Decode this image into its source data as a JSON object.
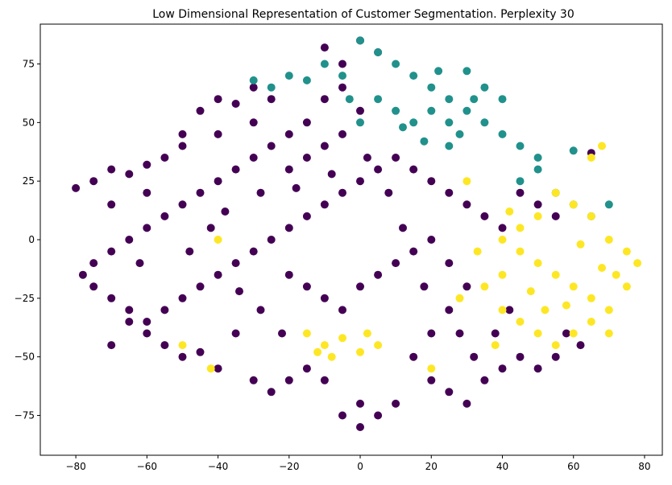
{
  "chart_data": {
    "type": "scatter",
    "title": "Low Dimensional Representation of Customer Segmentation. Perplexity 30",
    "xlabel": "",
    "ylabel": "",
    "xlim": [
      -90,
      85
    ],
    "ylim": [
      -92,
      92
    ],
    "x_ticks": [
      -80,
      -60,
      -40,
      -20,
      0,
      20,
      40,
      60,
      80
    ],
    "y_ticks": [
      -75,
      -50,
      -25,
      0,
      25,
      50,
      75
    ],
    "grid": false,
    "series": [
      {
        "color": "#440154",
        "points": [
          [
            -75,
            25
          ],
          [
            -70,
            30
          ],
          [
            -65,
            28
          ],
          [
            -60,
            32
          ],
          [
            -55,
            35
          ],
          [
            -50,
            45
          ],
          [
            -45,
            55
          ],
          [
            -40,
            60
          ],
          [
            -35,
            58
          ],
          [
            -30,
            50
          ],
          [
            -25,
            40
          ],
          [
            -20,
            30
          ],
          [
            -15,
            35
          ],
          [
            -10,
            40
          ],
          [
            -5,
            45
          ],
          [
            0,
            55
          ],
          [
            -5,
            65
          ],
          [
            -10,
            60
          ],
          [
            -15,
            50
          ],
          [
            -20,
            45
          ],
          [
            -30,
            35
          ],
          [
            -35,
            30
          ],
          [
            -40,
            25
          ],
          [
            -45,
            20
          ],
          [
            -50,
            15
          ],
          [
            -55,
            10
          ],
          [
            -60,
            5
          ],
          [
            -65,
            0
          ],
          [
            -70,
            -5
          ],
          [
            -75,
            -10
          ],
          [
            -78,
            -15
          ],
          [
            -75,
            -20
          ],
          [
            -70,
            -25
          ],
          [
            -65,
            -30
          ],
          [
            -60,
            -35
          ],
          [
            -55,
            -30
          ],
          [
            -50,
            -25
          ],
          [
            -45,
            -20
          ],
          [
            -40,
            -15
          ],
          [
            -35,
            -10
          ],
          [
            -30,
            -5
          ],
          [
            -25,
            0
          ],
          [
            -20,
            5
          ],
          [
            -15,
            10
          ],
          [
            -10,
            15
          ],
          [
            -5,
            20
          ],
          [
            0,
            25
          ],
          [
            5,
            30
          ],
          [
            10,
            35
          ],
          [
            15,
            30
          ],
          [
            20,
            25
          ],
          [
            25,
            20
          ],
          [
            30,
            15
          ],
          [
            35,
            10
          ],
          [
            40,
            5
          ],
          [
            45,
            20
          ],
          [
            50,
            15
          ],
          [
            55,
            10
          ],
          [
            -20,
            -15
          ],
          [
            -15,
            -20
          ],
          [
            -10,
            -25
          ],
          [
            -5,
            -30
          ],
          [
            0,
            -20
          ],
          [
            5,
            -15
          ],
          [
            10,
            -10
          ],
          [
            15,
            -5
          ],
          [
            20,
            0
          ],
          [
            25,
            -10
          ],
          [
            30,
            -20
          ],
          [
            25,
            -30
          ],
          [
            20,
            -40
          ],
          [
            15,
            -50
          ],
          [
            20,
            -60
          ],
          [
            25,
            -65
          ],
          [
            30,
            -70
          ],
          [
            35,
            -60
          ],
          [
            40,
            -55
          ],
          [
            45,
            -50
          ],
          [
            50,
            -55
          ],
          [
            55,
            -50
          ],
          [
            -30,
            -60
          ],
          [
            -25,
            -65
          ],
          [
            -20,
            -60
          ],
          [
            -15,
            -55
          ],
          [
            -10,
            -60
          ],
          [
            -5,
            -75
          ],
          [
            0,
            -80
          ],
          [
            5,
            -75
          ],
          [
            10,
            -70
          ],
          [
            0,
            -70
          ],
          [
            -55,
            -45
          ],
          [
            -50,
            -50
          ],
          [
            -45,
            -48
          ],
          [
            -40,
            -55
          ],
          [
            -35,
            -40
          ],
          [
            -60,
            -40
          ],
          [
            -65,
            -35
          ],
          [
            -70,
            -45
          ],
          [
            5,
            80
          ],
          [
            -5,
            75
          ],
          [
            -10,
            82
          ],
          [
            0,
            85
          ],
          [
            -25,
            60
          ],
          [
            -30,
            65
          ],
          [
            -40,
            45
          ],
          [
            -50,
            40
          ],
          [
            -60,
            20
          ],
          [
            -70,
            15
          ],
          [
            -80,
            22
          ],
          [
            -62,
            -10
          ],
          [
            -48,
            -5
          ],
          [
            -42,
            5
          ],
          [
            -38,
            12
          ],
          [
            -28,
            20
          ],
          [
            -18,
            22
          ],
          [
            -8,
            28
          ],
          [
            2,
            35
          ],
          [
            8,
            20
          ],
          [
            12,
            5
          ],
          [
            18,
            -20
          ],
          [
            28,
            -40
          ],
          [
            32,
            -50
          ],
          [
            38,
            -40
          ],
          [
            42,
            -30
          ],
          [
            58,
            -40
          ],
          [
            62,
            -45
          ],
          [
            65,
            37
          ],
          [
            -34,
            -22
          ],
          [
            -28,
            -30
          ],
          [
            -22,
            -40
          ]
        ]
      },
      {
        "color": "#21918c",
        "points": [
          [
            0,
            85
          ],
          [
            5,
            80
          ],
          [
            10,
            75
          ],
          [
            15,
            70
          ],
          [
            20,
            65
          ],
          [
            25,
            60
          ],
          [
            30,
            55
          ],
          [
            35,
            50
          ],
          [
            40,
            45
          ],
          [
            45,
            40
          ],
          [
            20,
            55
          ],
          [
            25,
            50
          ],
          [
            15,
            50
          ],
          [
            10,
            55
          ],
          [
            5,
            60
          ],
          [
            0,
            50
          ],
          [
            -3,
            60
          ],
          [
            -25,
            65
          ],
          [
            -30,
            68
          ],
          [
            -20,
            70
          ],
          [
            -15,
            68
          ],
          [
            22,
            72
          ],
          [
            30,
            72
          ],
          [
            35,
            65
          ],
          [
            40,
            60
          ],
          [
            50,
            30
          ],
          [
            55,
            20
          ],
          [
            60,
            15
          ],
          [
            65,
            10
          ],
          [
            70,
            15
          ],
          [
            45,
            25
          ],
          [
            50,
            35
          ],
          [
            60,
            38
          ],
          [
            28,
            45
          ],
          [
            18,
            42
          ],
          [
            12,
            48
          ],
          [
            -5,
            70
          ],
          [
            -10,
            75
          ],
          [
            25,
            40
          ],
          [
            32,
            60
          ]
        ]
      },
      {
        "color": "#fde725",
        "points": [
          [
            40,
            0
          ],
          [
            45,
            -5
          ],
          [
            50,
            -10
          ],
          [
            55,
            -15
          ],
          [
            60,
            -20
          ],
          [
            65,
            -25
          ],
          [
            70,
            -30
          ],
          [
            75,
            -20
          ],
          [
            78,
            -10
          ],
          [
            70,
            0
          ],
          [
            65,
            10
          ],
          [
            60,
            15
          ],
          [
            55,
            20
          ],
          [
            50,
            10
          ],
          [
            45,
            5
          ],
          [
            40,
            -15
          ],
          [
            35,
            -20
          ],
          [
            40,
            -30
          ],
          [
            45,
            -35
          ],
          [
            50,
            -40
          ],
          [
            55,
            -45
          ],
          [
            60,
            -40
          ],
          [
            65,
            -35
          ],
          [
            70,
            -40
          ],
          [
            75,
            -5
          ],
          [
            72,
            -15
          ],
          [
            68,
            -12
          ],
          [
            62,
            -2
          ],
          [
            58,
            -28
          ],
          [
            48,
            -22
          ],
          [
            -15,
            -40
          ],
          [
            -10,
            -45
          ],
          [
            -5,
            -42
          ],
          [
            0,
            -48
          ],
          [
            5,
            -45
          ],
          [
            -8,
            -50
          ],
          [
            2,
            -40
          ],
          [
            -12,
            -48
          ],
          [
            -50,
            -45
          ],
          [
            -40,
            0
          ],
          [
            65,
            35
          ],
          [
            68,
            40
          ],
          [
            30,
            25
          ],
          [
            20,
            -55
          ],
          [
            42,
            12
          ],
          [
            52,
            -30
          ],
          [
            38,
            -45
          ],
          [
            33,
            -5
          ],
          [
            28,
            -25
          ],
          [
            -42,
            -55
          ]
        ]
      }
    ]
  }
}
